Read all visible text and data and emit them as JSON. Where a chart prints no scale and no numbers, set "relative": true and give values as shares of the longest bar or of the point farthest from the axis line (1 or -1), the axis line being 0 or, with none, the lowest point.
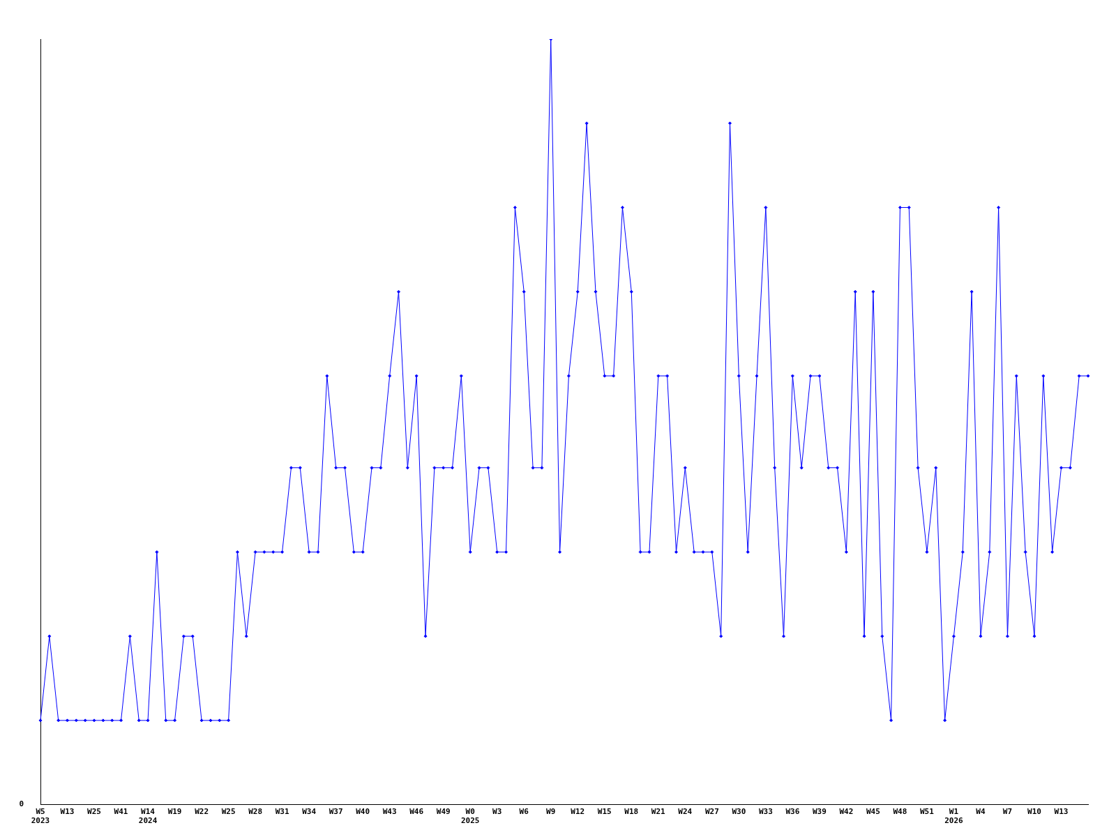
{
  "chart_data": {
    "type": "line",
    "relative": true,
    "categories": [
      "W5\n2023",
      null,
      null,
      "W13",
      null,
      null,
      "W25",
      null,
      null,
      "W41",
      null,
      null,
      "W14\n2024",
      null,
      null,
      "W19",
      null,
      null,
      "W22",
      null,
      null,
      "W25",
      null,
      null,
      "W28",
      null,
      null,
      "W31",
      null,
      null,
      "W34",
      null,
      null,
      "W37",
      null,
      null,
      "W40",
      null,
      null,
      "W43",
      null,
      null,
      "W46",
      null,
      null,
      "W49",
      null,
      null,
      "W0\n2025",
      null,
      null,
      "W3",
      null,
      null,
      "W6",
      null,
      null,
      "W9",
      null,
      null,
      "W12",
      null,
      null,
      "W15",
      null,
      null,
      "W18",
      null,
      null,
      "W21",
      null,
      null,
      "W24",
      null,
      null,
      "W27",
      null,
      null,
      "W30",
      null,
      null,
      "W33",
      null,
      null,
      "W36",
      null,
      null,
      "W39",
      null,
      null,
      "W42",
      null,
      null,
      "W45",
      null,
      null,
      "W48",
      null,
      null,
      "W51",
      null,
      null,
      "W1\n2026",
      null,
      null,
      "W4",
      null,
      null,
      "W7",
      null,
      null,
      "W10",
      null,
      null,
      "W13",
      null,
      null,
      null
    ],
    "series": [
      {
        "color": "#0000ff",
        "values": [
          0.11,
          0.22,
          0.11,
          0.11,
          0.11,
          0.11,
          0.11,
          0.11,
          0.11,
          0.11,
          0.22,
          0.11,
          0.11,
          0.33,
          0.11,
          0.11,
          0.22,
          0.22,
          0.11,
          0.11,
          0.11,
          0.11,
          0.33,
          0.22,
          0.33,
          0.33,
          0.33,
          0.33,
          0.44,
          0.44,
          0.33,
          0.33,
          0.56,
          0.44,
          0.44,
          0.33,
          0.33,
          0.44,
          0.44,
          0.56,
          0.67,
          0.44,
          0.56,
          0.22,
          0.44,
          0.44,
          0.44,
          0.56,
          0.33,
          0.44,
          0.44,
          0.33,
          0.33,
          0.78,
          0.67,
          0.44,
          0.44,
          1,
          0.33,
          0.56,
          0.67,
          0.89,
          0.67,
          0.56,
          0.56,
          0.78,
          0.67,
          0.33,
          0.33,
          0.56,
          0.56,
          0.33,
          0.44,
          0.33,
          0.33,
          0.33,
          0.22,
          0.89,
          0.56,
          0.33,
          0.56,
          0.78,
          0.44,
          0.22,
          0.56,
          0.44,
          0.56,
          0.56,
          0.44,
          0.44,
          0.33,
          0.67,
          0.22,
          0.67,
          0.22,
          0.11,
          0.78,
          0.78,
          0.44,
          0.33,
          0.44,
          0.11,
          0.22,
          0.33,
          0.67,
          0.22,
          0.33,
          0.78,
          0.22,
          0.56,
          0.33,
          0.22,
          0.56,
          0.33,
          0.44,
          0.44,
          0.56,
          0.56
        ]
      }
    ],
    "annotations": [
      "0"
    ],
    "grid": false,
    "legend": false,
    "marker": "diamond",
    "line_style": "solid"
  }
}
